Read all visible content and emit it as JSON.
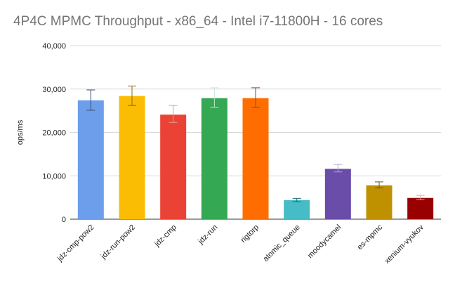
{
  "chart_data": {
    "type": "bar",
    "title": "4P4C MPMC Throughput - x86_64 - Intel i7-11800H - 16 cores",
    "xlabel": "",
    "ylabel": "ops/ms",
    "ylim": [
      0,
      40000
    ],
    "yticks": [
      0,
      10000,
      20000,
      30000,
      40000
    ],
    "ytick_labels": [
      "0",
      "10,000",
      "20,000",
      "30,000",
      "40,000"
    ],
    "grid": true,
    "legend": "none",
    "categories": [
      "jdz-cmp-pow2",
      "jdz-run-pow2",
      "jdz-cmp",
      "jdz-run",
      "rigtorp",
      "atomic_queue",
      "moodycamel",
      "es-mpmc",
      "xenium-vyukov"
    ],
    "values": [
      27400,
      28400,
      24100,
      27900,
      27900,
      4400,
      11600,
      7800,
      4900
    ],
    "error_low": [
      25100,
      26200,
      22300,
      25800,
      25800,
      4050,
      10900,
      7200,
      4500
    ],
    "error_high": [
      29800,
      30700,
      26200,
      30300,
      30300,
      4800,
      12600,
      8600,
      5500
    ],
    "colors": [
      "#6d9eeb",
      "#fbbc04",
      "#ea4335",
      "#34a853",
      "#ff6d01",
      "#46bdc6",
      "#6a4ca9",
      "#bf9000",
      "#990000"
    ],
    "error_colors": [
      "#3c4b6a",
      "#8a6a15",
      "#e69a90",
      "#c8e6cf",
      "#8a4a25",
      "#1d6a70",
      "#b4a7d6",
      "#6b5313",
      "#e6a0a0"
    ]
  }
}
